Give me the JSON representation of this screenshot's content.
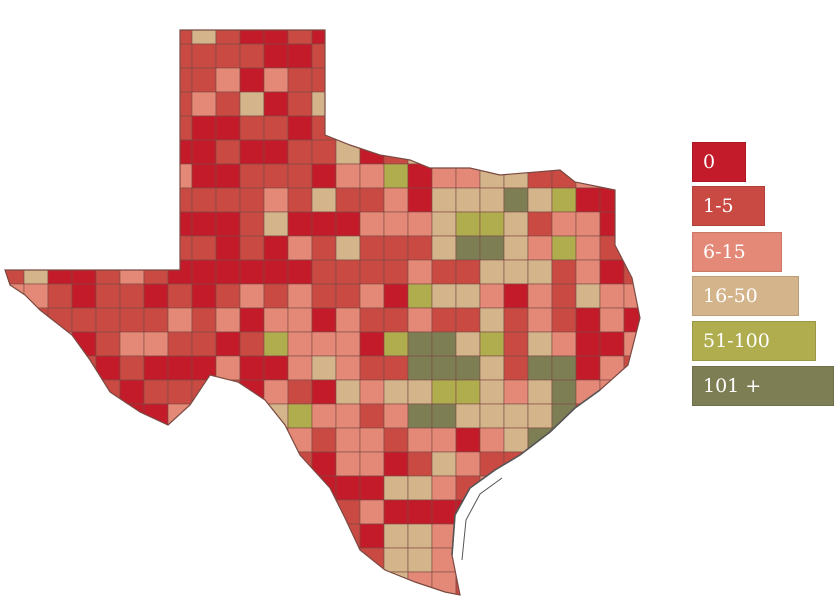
{
  "legend": {
    "items": [
      {
        "label": "0",
        "color": "#c41b2b"
      },
      {
        "label": "1-5",
        "color": "#c94a43"
      },
      {
        "label": "6-15",
        "color": "#e48877"
      },
      {
        "label": "16-50",
        "color": "#d4b48a"
      },
      {
        "label": "51-100",
        "color": "#b0ad4f"
      },
      {
        "label": "101 +",
        "color": "#7e7e55"
      }
    ]
  },
  "map": {
    "region": "Texas counties",
    "border_color": "#7a4a42",
    "coast_color": "#555555"
  }
}
